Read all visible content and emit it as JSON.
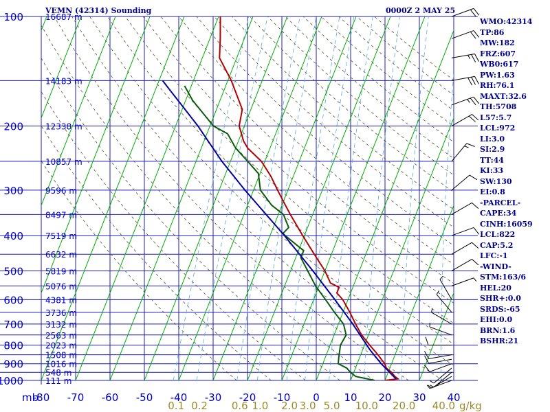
{
  "header": {
    "title": "VEMN (42314) Sounding",
    "obs_time": "0000Z  2 MAY 25"
  },
  "indices": [
    "WMO:42314",
    "TP:86",
    "MW:182",
    "FRZ:607",
    "WB0:617",
    "PW:1.63",
    "RH:76.1",
    "MAXT:32.6",
    "TH:5708",
    "L57:5.7",
    "LCL:972",
    "LI:3.0",
    "SI:2.9",
    "TT:44",
    "KI:33",
    "SW:130",
    "EI:0.8",
    "-PARCEL-",
    "CAPE:34",
    "CINH:16059",
    "LCL:822",
    "CAP:5.2",
    "LFC:-1",
    "-WIND-",
    "STM:163/6",
    "HEL:20",
    "SHR+:0.0",
    "SRDS:-65",
    "EHI:0.0",
    "BRN:1.6",
    "BSHR:21"
  ],
  "colors": {
    "grid": "#1c1cb4",
    "isotherm": "#00aa00",
    "temperature": "#b40000",
    "dewpoint": "#0a5a0a",
    "parcel": "#0000a0",
    "dry_adiabat": "#555533",
    "mixing_ratio": "#55aadd",
    "label_text": "#0000cc",
    "mixing_label": "#9a8a2a"
  },
  "chart_data": {
    "type": "skew-t log-p",
    "pressure_unit": "mb",
    "pressure_levels": [
      100,
      200,
      300,
      400,
      500,
      600,
      700,
      800,
      900,
      1000
    ],
    "pressure_range": [
      1000,
      100
    ],
    "temp_range_at_base": [
      -80,
      40
    ],
    "temperature_ticks": [
      -80,
      -70,
      -60,
      -50,
      -40,
      -30,
      -20,
      -10,
      0,
      10,
      20,
      30,
      40
    ],
    "height_labels": [
      {
        "p": 100,
        "label": "16687 m"
      },
      {
        "p": 150,
        "label": "14183 m"
      },
      {
        "p": 200,
        "label": "12338 m"
      },
      {
        "p": 250,
        "label": "10857 m"
      },
      {
        "p": 300,
        "label": "9596 m"
      },
      {
        "p": 350,
        "label": "8497 m"
      },
      {
        "p": 400,
        "label": "7519 m"
      },
      {
        "p": 450,
        "label": "6632 m"
      },
      {
        "p": 500,
        "label": "5819 m"
      },
      {
        "p": 550,
        "label": "5076 m"
      },
      {
        "p": 600,
        "label": "4381 m"
      },
      {
        "p": 650,
        "label": "3736 m"
      },
      {
        "p": 700,
        "label": "3132 m"
      },
      {
        "p": 750,
        "label": "2563 m"
      },
      {
        "p": 800,
        "label": "2023 m"
      },
      {
        "p": 850,
        "label": "1508 m"
      },
      {
        "p": 900,
        "label": "1016 m"
      },
      {
        "p": 950,
        "label": "548 m"
      },
      {
        "p": 1000,
        "label": "111 m"
      }
    ],
    "mixing_ratio_lines": [
      {
        "label": "0.1",
        "w": 0.1
      },
      {
        "label": "0.2",
        "w": 0.2
      },
      {
        "label": "0.6",
        "w": 0.6
      },
      {
        "label": "1.0",
        "w": 1.0
      },
      {
        "label": "2.0",
        "w": 2.0
      },
      {
        "label": "3.0",
        "w": 3.0
      },
      {
        "label": "5.0",
        "w": 5.0
      },
      {
        "label": "10.0",
        "w": 10.0
      },
      {
        "label": "20.0",
        "w": 20.0
      },
      {
        "label": "40.0",
        "w": 40.0
      }
    ],
    "mixing_ratio_unit": "g/kg",
    "series": [
      {
        "key": "temperature",
        "points": [
          {
            "p": 1000,
            "t": 20.0
          },
          {
            "p": 990,
            "t": 23.6
          },
          {
            "p": 975,
            "t": 22.4
          },
          {
            "p": 950,
            "t": 21.0
          },
          {
            "p": 925,
            "t": 19.0
          },
          {
            "p": 900,
            "t": 18.0
          },
          {
            "p": 850,
            "t": 15.0
          },
          {
            "p": 800,
            "t": 11.5
          },
          {
            "p": 750,
            "t": 8.0
          },
          {
            "p": 700,
            "t": 5.0
          },
          {
            "p": 650,
            "t": 2.0
          },
          {
            "p": 600,
            "t": -1.5
          },
          {
            "p": 575,
            "t": -4.0
          },
          {
            "p": 555,
            "t": -4.0
          },
          {
            "p": 540,
            "t": -7.0
          },
          {
            "p": 500,
            "t": -10.0
          },
          {
            "p": 450,
            "t": -15.0
          },
          {
            "p": 400,
            "t": -20.5
          },
          {
            "p": 350,
            "t": -26.5
          },
          {
            "p": 330,
            "t": -29.0
          },
          {
            "p": 300,
            "t": -33.0
          },
          {
            "p": 275,
            "t": -36.5
          },
          {
            "p": 250,
            "t": -41.0
          },
          {
            "p": 230,
            "t": -46.5
          },
          {
            "p": 220,
            "t": -48.5
          },
          {
            "p": 200,
            "t": -51.5
          },
          {
            "p": 180,
            "t": -52.5
          },
          {
            "p": 150,
            "t": -59.0
          },
          {
            "p": 130,
            "t": -65.0
          },
          {
            "p": 115,
            "t": -67.0
          },
          {
            "p": 100,
            "t": -69.5
          }
        ]
      },
      {
        "key": "dewpoint",
        "points": [
          {
            "p": 1000,
            "t": 17.0
          },
          {
            "p": 975,
            "t": 11.0
          },
          {
            "p": 950,
            "t": 9.0
          },
          {
            "p": 925,
            "t": 7.5
          },
          {
            "p": 900,
            "t": 4.5
          },
          {
            "p": 870,
            "t": 4.0
          },
          {
            "p": 800,
            "t": 3.0
          },
          {
            "p": 750,
            "t": 3.5
          },
          {
            "p": 700,
            "t": 1.5
          },
          {
            "p": 650,
            "t": -2.5
          },
          {
            "p": 600,
            "t": -6.5
          },
          {
            "p": 550,
            "t": -11.0
          },
          {
            "p": 500,
            "t": -15.0
          },
          {
            "p": 460,
            "t": -18.5
          },
          {
            "p": 440,
            "t": -18.5
          },
          {
            "p": 420,
            "t": -22.0
          },
          {
            "p": 395,
            "t": -26.5
          },
          {
            "p": 380,
            "t": -25.5
          },
          {
            "p": 350,
            "t": -28.5
          },
          {
            "p": 330,
            "t": -33.0
          },
          {
            "p": 300,
            "t": -38.0
          },
          {
            "p": 270,
            "t": -40.5
          },
          {
            "p": 250,
            "t": -45.0
          },
          {
            "p": 230,
            "t": -50.0
          },
          {
            "p": 210,
            "t": -54.0
          },
          {
            "p": 200,
            "t": -59.0
          },
          {
            "p": 170,
            "t": -68.0
          },
          {
            "p": 155,
            "t": -72.0
          }
        ]
      },
      {
        "key": "parcel",
        "points": [
          {
            "p": 990,
            "t": 23.0
          },
          {
            "p": 900,
            "t": 17.0
          },
          {
            "p": 822,
            "t": 12.0
          },
          {
            "p": 700,
            "t": 4.2
          },
          {
            "p": 600,
            "t": -3.8
          },
          {
            "p": 500,
            "t": -13.5
          },
          {
            "p": 400,
            "t": -25.8
          },
          {
            "p": 300,
            "t": -42.5
          },
          {
            "p": 250,
            "t": -52.5
          },
          {
            "p": 200,
            "t": -63.5
          },
          {
            "p": 150,
            "t": -79.0
          }
        ]
      }
    ],
    "wind_barbs": [
      {
        "p": 1000,
        "dir": 250,
        "spd": 5
      },
      {
        "p": 975,
        "dir": 240,
        "spd": 5
      },
      {
        "p": 950,
        "dir": 230,
        "spd": 5
      },
      {
        "p": 925,
        "dir": 230,
        "spd": 5
      },
      {
        "p": 900,
        "dir": 250,
        "spd": 10
      },
      {
        "p": 875,
        "dir": 260,
        "spd": 10
      },
      {
        "p": 850,
        "dir": 260,
        "spd": 10
      },
      {
        "p": 800,
        "dir": 270,
        "spd": 10
      },
      {
        "p": 750,
        "dir": 290,
        "spd": 5
      },
      {
        "p": 700,
        "dir": 300,
        "spd": 5
      },
      {
        "p": 650,
        "dir": 320,
        "spd": 5
      },
      {
        "p": 600,
        "dir": 330,
        "spd": 5
      },
      {
        "p": 550,
        "dir": 70,
        "spd": 5
      },
      {
        "p": 500,
        "dir": 60,
        "spd": 10
      },
      {
        "p": 450,
        "dir": 60,
        "spd": 10
      },
      {
        "p": 400,
        "dir": 70,
        "spd": 10
      },
      {
        "p": 350,
        "dir": 60,
        "spd": 10
      },
      {
        "p": 300,
        "dir": 50,
        "spd": 10
      },
      {
        "p": 250,
        "dir": 40,
        "spd": 15
      },
      {
        "p": 200,
        "dir": 60,
        "spd": 20
      },
      {
        "p": 175,
        "dir": 70,
        "spd": 25
      },
      {
        "p": 150,
        "dir": 80,
        "spd": 30
      },
      {
        "p": 130,
        "dir": 80,
        "spd": 25
      },
      {
        "p": 115,
        "dir": 70,
        "spd": 20
      },
      {
        "p": 100,
        "dir": 70,
        "spd": 20
      }
    ]
  }
}
